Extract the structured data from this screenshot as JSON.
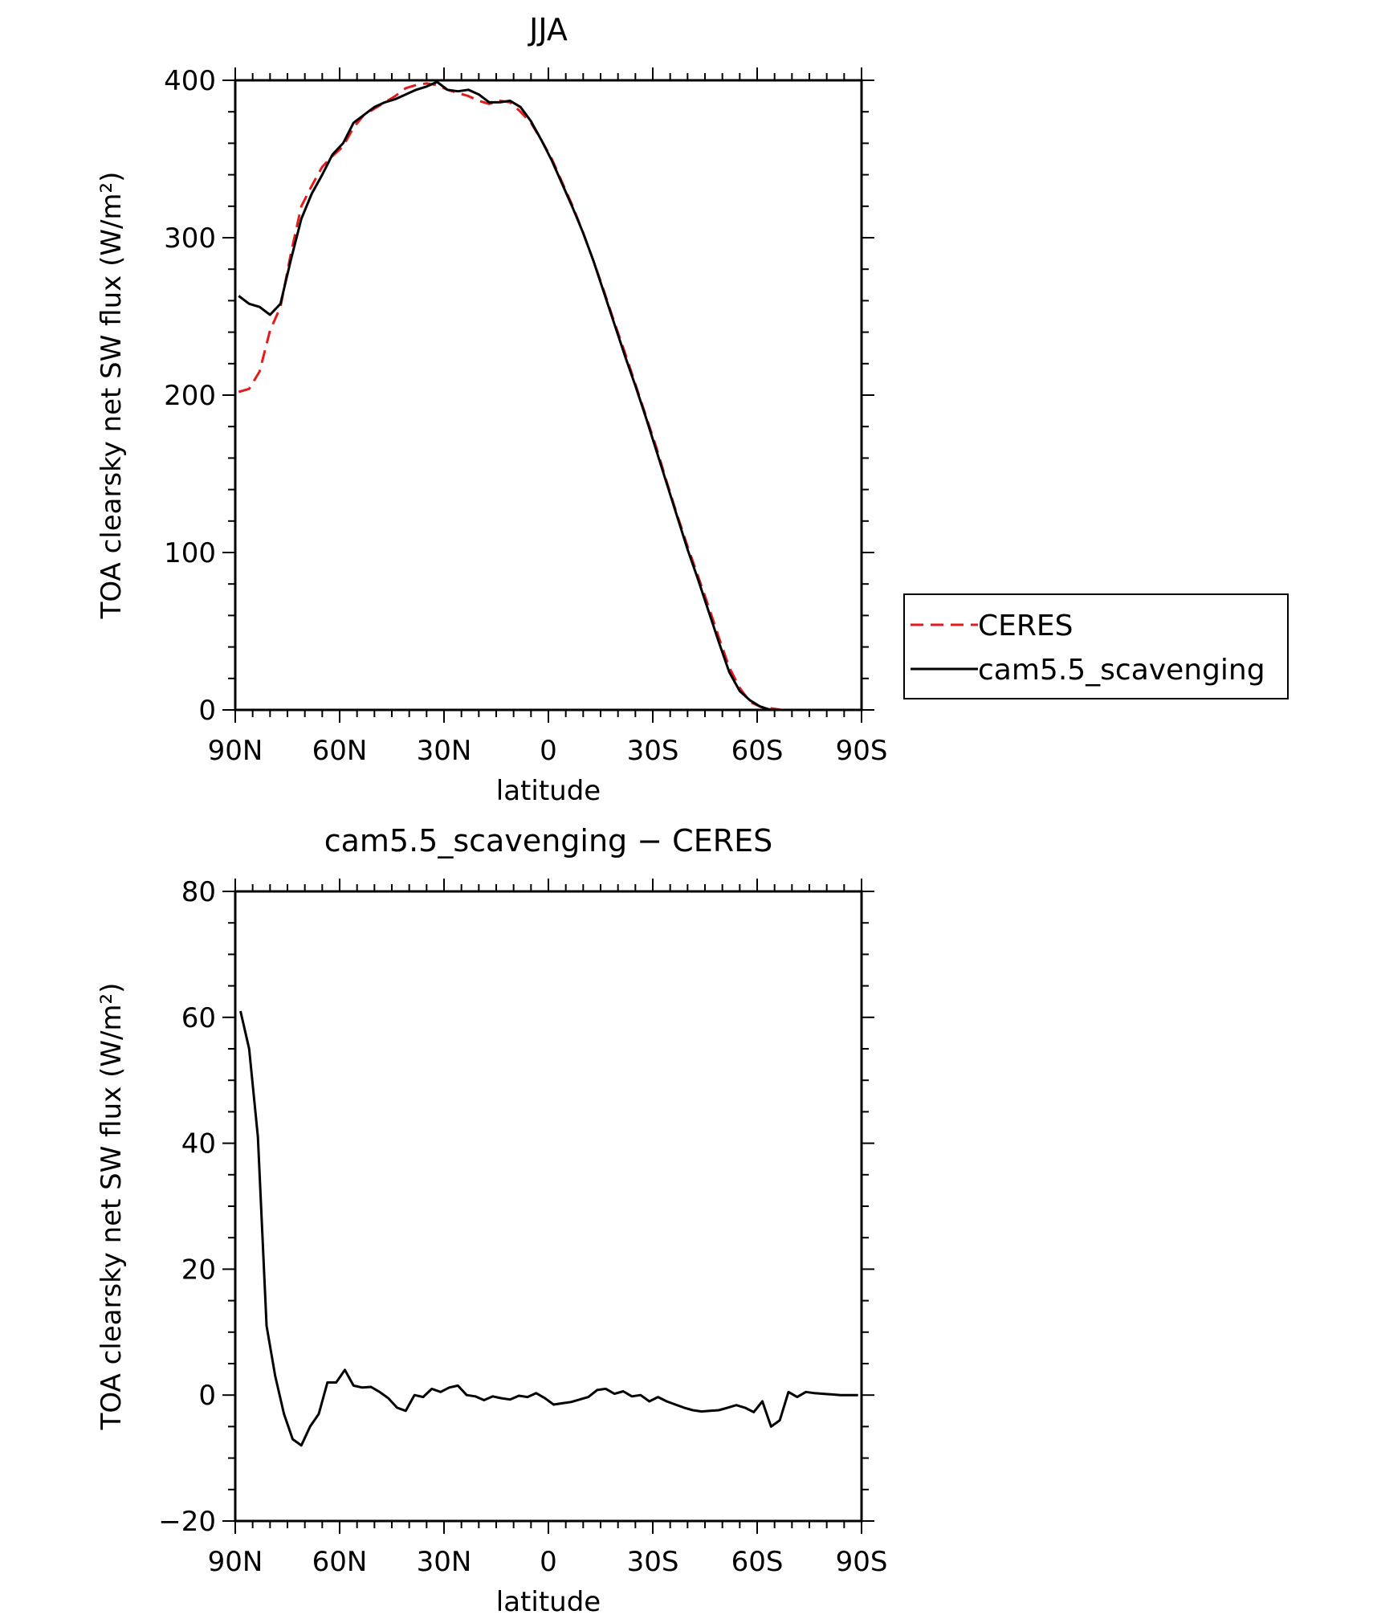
{
  "chart_data": [
    {
      "type": "line",
      "title": "JJA",
      "xlabel": "latitude",
      "ylabel": "TOA clearsky net SW flux (W/m²)",
      "xlim": [
        90,
        -90
      ],
      "ylim": [
        0,
        400
      ],
      "x_ticks": [
        "90N",
        "60N",
        "30N",
        "0",
        "30S",
        "60S",
        "90S"
      ],
      "y_ticks": [
        "0",
        "100",
        "200",
        "300",
        "400"
      ],
      "legend": {
        "position": "right"
      },
      "series": [
        {
          "name": "CERES",
          "color": "#e41a1c",
          "style": "dashed",
          "x": [
            89,
            86,
            83,
            80,
            77,
            74,
            71,
            68,
            65,
            62,
            59,
            56,
            53,
            50,
            47,
            44,
            41,
            38,
            35,
            32,
            29,
            26,
            23,
            20,
            17,
            14,
            11,
            8,
            5,
            2,
            -1,
            -4,
            -7,
            -10,
            -13,
            -16,
            -19,
            -22,
            -25,
            -28,
            -31,
            -34,
            -37,
            -40,
            -43,
            -46,
            -49,
            -52,
            -55,
            -58,
            -61,
            -64,
            -67,
            -70,
            -73,
            -76,
            -79,
            -82,
            -85,
            -88
          ],
          "y": [
            202,
            204,
            215,
            241,
            256,
            290,
            320,
            333,
            345,
            352,
            358,
            370,
            378,
            382,
            386,
            390,
            395,
            397,
            398,
            397,
            394,
            392,
            390,
            387,
            385,
            387,
            386,
            380,
            373,
            362,
            350,
            335,
            320,
            303,
            285,
            266,
            246,
            227,
            207,
            187,
            167,
            145,
            124,
            104,
            85,
            66,
            46,
            27,
            14,
            5,
            2,
            1,
            0,
            0,
            0,
            0,
            0,
            0,
            0,
            0
          ]
        },
        {
          "name": "cam5.5_scavenging",
          "color": "#000000",
          "style": "solid",
          "x": [
            89,
            86,
            83,
            80,
            77,
            74,
            71,
            68,
            65,
            62,
            59,
            56,
            53,
            50,
            47,
            44,
            41,
            38,
            35,
            32,
            29,
            26,
            23,
            20,
            17,
            14,
            11,
            8,
            5,
            2,
            -1,
            -4,
            -7,
            -10,
            -13,
            -16,
            -19,
            -22,
            -25,
            -28,
            -31,
            -34,
            -37,
            -40,
            -43,
            -46,
            -49,
            -52,
            -55,
            -58,
            -61,
            -64,
            -67,
            -70,
            -73,
            -76,
            -79,
            -82,
            -85,
            -88
          ],
          "y": [
            263,
            258,
            256,
            251,
            258,
            286,
            312,
            328,
            340,
            353,
            360,
            373,
            378,
            383,
            386,
            388,
            391,
            394,
            396,
            399,
            394,
            393,
            394,
            391,
            386,
            386,
            387,
            383,
            374,
            362,
            349,
            334,
            319,
            303,
            285,
            265,
            245,
            225,
            206,
            186,
            165,
            144,
            123,
            102,
            83,
            63,
            43,
            24,
            12,
            6,
            2,
            0,
            0,
            0,
            0,
            0,
            0,
            0,
            0,
            0
          ]
        }
      ]
    },
    {
      "type": "line",
      "title": "cam5.5_scavenging - CERES",
      "xlabel": "latitude",
      "ylabel": "TOA clearsky net SW flux (W/m²)",
      "xlim": [
        90,
        -90
      ],
      "ylim": [
        -20,
        80
      ],
      "x_ticks": [
        "90N",
        "60N",
        "30N",
        "0",
        "30S",
        "60S",
        "90S"
      ],
      "y_ticks": [
        "-20",
        "0",
        "20",
        "40",
        "60",
        "80"
      ],
      "series": [
        {
          "color": "#000000",
          "style": "solid",
          "x": [
            88.5,
            86,
            83.5,
            81,
            78.5,
            76,
            73.5,
            71,
            68.5,
            66,
            63.5,
            61,
            58.5,
            56,
            53.5,
            51,
            48.5,
            46,
            43.5,
            41,
            38.5,
            36,
            33.5,
            31,
            28.5,
            26,
            23.5,
            21,
            18.5,
            16,
            13.5,
            11,
            8.5,
            6,
            3.5,
            1,
            -1.5,
            -4,
            -6.5,
            -9,
            -11.5,
            -14,
            -16.5,
            -19,
            -21.5,
            -24,
            -26.5,
            -29,
            -31.5,
            -34,
            -36.5,
            -39,
            -41.5,
            -44,
            -46.5,
            -49,
            -51.5,
            -54,
            -56.5,
            -59,
            -61.5,
            -64,
            -66.5,
            -69,
            -71.5,
            -74,
            -76.5,
            -79,
            -81.5,
            -84,
            -86.5,
            -89
          ],
          "y": [
            61,
            55,
            41,
            11,
            3,
            -3,
            -7,
            -8,
            -5,
            -3,
            2,
            2,
            4,
            1.5,
            1.2,
            1.3,
            0.5,
            -0.5,
            -2,
            -2.5,
            0,
            -0.3,
            1,
            0.5,
            1.2,
            1.5,
            0,
            -0.2,
            -0.8,
            -0.2,
            -0.5,
            -0.7,
            -0.1,
            -0.3,
            0.3,
            -0.5,
            -1.5,
            -1.3,
            -1.1,
            -0.7,
            -0.3,
            0.8,
            1,
            0.2,
            0.6,
            -0.2,
            0,
            -1,
            -0.3,
            -1,
            -1.5,
            -2,
            -2.4,
            -2.6,
            -2.5,
            -2.4,
            -2,
            -1.6,
            -2,
            -2.7,
            -1,
            -5,
            -4,
            0.5,
            -0.3,
            0.5,
            0.3,
            0.2,
            0.1,
            0,
            0,
            0
          ]
        }
      ]
    }
  ]
}
